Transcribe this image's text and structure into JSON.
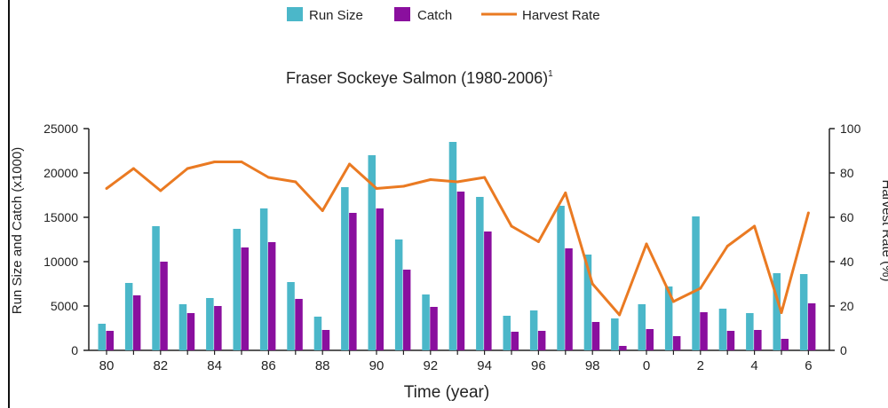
{
  "chart_data": {
    "type": "bar",
    "title": "Fraser Sockeye Salmon (1980-2006)",
    "title_sup": "1",
    "xlabel": "Time (year)",
    "ylabel": "Run Size and Catch (x1000)",
    "y2label": "Harvest Rate (%)",
    "ylim": [
      0,
      25000
    ],
    "y2lim": [
      0,
      100
    ],
    "yticks": [
      "0",
      "5000",
      "10000",
      "15000",
      "20000",
      "25000"
    ],
    "y2ticks": [
      "0",
      "20",
      "40",
      "60",
      "80",
      "100"
    ],
    "xtick_labels": [
      "80",
      "",
      "82",
      "",
      "84",
      "",
      "86",
      "",
      "88",
      "",
      "90",
      "",
      "92",
      "",
      "94",
      "",
      "96",
      "",
      "98",
      "",
      "0",
      "",
      "2",
      "",
      "4",
      "",
      "6"
    ],
    "categories": [
      "1980",
      "1981",
      "1982",
      "1983",
      "1984",
      "1985",
      "1986",
      "1987",
      "1988",
      "1989",
      "1990",
      "1991",
      "1992",
      "1993",
      "1994",
      "1995",
      "1996",
      "1997",
      "1998",
      "1999",
      "2000",
      "2001",
      "2002",
      "2003",
      "2004",
      "2005",
      "2006"
    ],
    "grid": false,
    "legend_position": "top-center",
    "series": [
      {
        "name": "Run Size",
        "kind": "bar",
        "axis": "left",
        "color": "#4bb7c9",
        "values": [
          3000,
          7600,
          14000,
          5200,
          5900,
          13700,
          16000,
          7700,
          3800,
          18400,
          22000,
          12500,
          6300,
          23500,
          17300,
          3900,
          4500,
          16300,
          10800,
          3600,
          5200,
          7200,
          15100,
          4700,
          4200,
          8700,
          8600
        ]
      },
      {
        "name": "Catch",
        "kind": "bar",
        "axis": "left",
        "color": "#8a0f9e",
        "values": [
          2200,
          6200,
          10000,
          4200,
          5000,
          11600,
          12200,
          5800,
          2300,
          15500,
          16000,
          9100,
          4900,
          17900,
          13400,
          2100,
          2200,
          11500,
          3200,
          500,
          2400,
          1600,
          4300,
          2200,
          2300,
          1300,
          5300
        ]
      },
      {
        "name": "Harvest Rate",
        "kind": "line",
        "axis": "right",
        "color": "#ea7a22",
        "values": [
          73,
          82,
          72,
          82,
          85,
          85,
          78,
          76,
          63,
          84,
          73,
          74,
          77,
          76,
          78,
          56,
          49,
          71,
          30,
          16,
          48,
          22,
          28,
          47,
          56,
          17,
          62
        ]
      }
    ]
  }
}
